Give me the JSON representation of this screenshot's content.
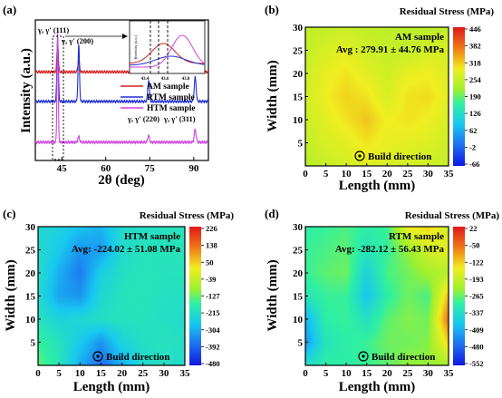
{
  "chart_data": [
    {
      "panel": "(a)",
      "type": "line",
      "xlabel": "2θ (deg)",
      "ylabel": "Intensity (a.u.)",
      "xlim": [
        36,
        95
      ],
      "xticks": [
        45,
        60,
        75,
        90
      ],
      "legend_position": "top-right",
      "series": [
        {
          "name": "AM sample",
          "color": "#d42020",
          "baseline": 0.63,
          "peaks": [
            {
              "x": 43.6,
              "h": 0.2,
              "w": 0.35
            },
            {
              "x": 50.8,
              "h": 0.08,
              "w": 0.4
            },
            {
              "x": 74.6,
              "h": 0.03,
              "w": 0.5
            },
            {
              "x": 90.5,
              "h": 0.04,
              "w": 0.5
            }
          ]
        },
        {
          "name": "RTM sample",
          "color": "#2030d0",
          "baseline": 0.42,
          "peaks": [
            {
              "x": 43.6,
              "h": 0.45,
              "w": 0.35
            },
            {
              "x": 50.8,
              "h": 0.4,
              "w": 0.35
            },
            {
              "x": 74.6,
              "h": 0.15,
              "w": 0.4
            },
            {
              "x": 90.5,
              "h": 0.17,
              "w": 0.45
            }
          ]
        },
        {
          "name": "HTM sample",
          "color": "#d040e0",
          "baseline": 0.13,
          "peaks": [
            {
              "x": 43.6,
              "h": 0.78,
              "w": 0.3
            },
            {
              "x": 50.8,
              "h": 0.04,
              "w": 0.4
            },
            {
              "x": 74.6,
              "h": 0.05,
              "w": 0.4
            },
            {
              "x": 90.5,
              "h": 0.09,
              "w": 0.45
            }
          ]
        }
      ],
      "annotations": [
        "γ, γ' (111)",
        "γ, γ' (200)",
        "γ, γ' (220)",
        "γ, γ' (311)"
      ],
      "inset": {
        "xlabel_ticks": [
          "43.4",
          "43.6",
          "43.8"
        ],
        "ylabel": "Intensity (a.u.)"
      }
    },
    {
      "panel": "(b)",
      "type": "heatmap",
      "sample": "AM sample",
      "avg": "Avg : 279.91 ± 44.76 MPa",
      "colorbar_title": "Residual Stress (MPa)",
      "colorbar_ticks": [
        "446",
        "382",
        "318",
        "254",
        "190",
        "126",
        "62",
        "-2",
        "-66"
      ],
      "vmin": -66,
      "vmax": 446,
      "xlabel": "Length (mm)",
      "ylabel": "Width (mm)",
      "xticks": [
        0,
        5,
        10,
        15,
        20,
        25,
        30,
        35
      ],
      "yticks": [
        5,
        10,
        15,
        20,
        25,
        30
      ],
      "xlim": [
        0,
        35
      ],
      "ylim": [
        0,
        30
      ],
      "note": "Build direction",
      "grid_values": [
        [
          250,
          250,
          255,
          250,
          245,
          240,
          245,
          250
        ],
        [
          250,
          270,
          280,
          260,
          255,
          250,
          265,
          270
        ],
        [
          255,
          285,
          300,
          280,
          260,
          285,
          290,
          275
        ],
        [
          260,
          290,
          310,
          300,
          270,
          300,
          305,
          280
        ],
        [
          255,
          280,
          300,
          320,
          290,
          300,
          290,
          270
        ],
        [
          250,
          270,
          280,
          300,
          285,
          280,
          275,
          260
        ],
        [
          240,
          255,
          265,
          275,
          270,
          265,
          260,
          250
        ]
      ]
    },
    {
      "panel": "(c)",
      "type": "heatmap",
      "sample": "HTM sample",
      "avg": "Avg: -224.02 ± 51.08 MPa",
      "colorbar_title": "Residual Stress (MPa)",
      "colorbar_ticks": [
        "226",
        "138",
        "50",
        "-39",
        "-127",
        "-215",
        "-304",
        "-392",
        "-480"
      ],
      "vmin": -480,
      "vmax": 226,
      "xlabel": "Length (mm)",
      "ylabel": "Width (mm)",
      "xticks": [
        0,
        5,
        10,
        15,
        20,
        25,
        30,
        35
      ],
      "yticks": [
        5,
        10,
        15,
        20,
        25,
        30
      ],
      "xlim": [
        0,
        35
      ],
      "ylim": [
        0,
        30
      ],
      "note": "Build direction",
      "grid_values": [
        [
          -230,
          -240,
          -270,
          -290,
          -220,
          -210,
          -205,
          -200
        ],
        [
          -220,
          -260,
          -330,
          -320,
          -220,
          -200,
          -200,
          -195
        ],
        [
          -210,
          -300,
          -360,
          -250,
          -210,
          -195,
          -200,
          -200
        ],
        [
          -220,
          -310,
          -330,
          -230,
          -200,
          -195,
          -205,
          -210
        ],
        [
          -200,
          -240,
          -230,
          -210,
          -200,
          -200,
          -210,
          -220
        ],
        [
          -160,
          -200,
          -260,
          -330,
          -240,
          -210,
          -200,
          -210
        ],
        [
          -130,
          -190,
          -300,
          -380,
          -300,
          -220,
          -210,
          -220
        ]
      ]
    },
    {
      "panel": "(d)",
      "type": "heatmap",
      "sample": "RTM sample",
      "avg": "Avg: -282.12 ± 56.43 MPa",
      "colorbar_title": "Residual Stress (MPa)",
      "colorbar_ticks": [
        "22",
        "-50",
        "-122",
        "-193",
        "-265",
        "-337",
        "-409",
        "-480",
        "-552"
      ],
      "vmin": -552,
      "vmax": 22,
      "xlabel": "Length (mm)",
      "ylabel": "Width (mm)",
      "xticks": [
        0,
        5,
        10,
        15,
        20,
        25,
        30,
        35
      ],
      "yticks": [
        5,
        10,
        15,
        20,
        25,
        30
      ],
      "xlim": [
        0,
        35
      ],
      "ylim": [
        0,
        30
      ],
      "note": "Build direction",
      "grid_values": [
        [
          -300,
          -290,
          -280,
          -300,
          -290,
          -150,
          -130,
          -190
        ],
        [
          -290,
          -280,
          -270,
          -320,
          -290,
          -240,
          -180,
          -160
        ],
        [
          -290,
          -270,
          -260,
          -360,
          -280,
          -260,
          -230,
          -210
        ],
        [
          -320,
          -290,
          -290,
          -380,
          -300,
          -260,
          -280,
          -110
        ],
        [
          -400,
          -300,
          -290,
          -330,
          -270,
          -250,
          -260,
          -50
        ],
        [
          -430,
          -320,
          -300,
          -290,
          -260,
          -260,
          -250,
          -130
        ],
        [
          -330,
          -300,
          -300,
          -290,
          -270,
          -240,
          -240,
          -230
        ]
      ]
    }
  ]
}
